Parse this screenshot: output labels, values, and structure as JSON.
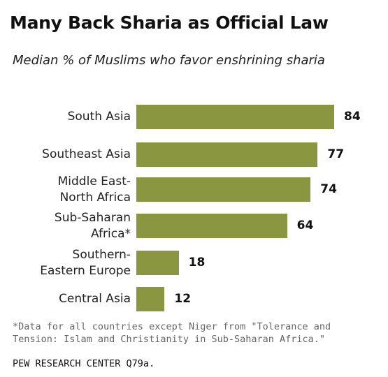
{
  "chart_data": {
    "type": "bar",
    "orientation": "horizontal",
    "title": "Many Back Sharia as Official Law",
    "subtitle": "Median % of Muslims who favor enshrining sharia",
    "categories": [
      [
        "South Asia"
      ],
      [
        "Southeast Asia"
      ],
      [
        "Middle East-",
        "North Africa"
      ],
      [
        "Sub-Saharan",
        "Africa*"
      ],
      [
        "Southern-",
        "Eastern Europe"
      ],
      [
        "Central Asia"
      ]
    ],
    "values": [
      84,
      77,
      74,
      64,
      18,
      12
    ],
    "xlim": [
      0,
      100
    ],
    "grid": false,
    "bar_color": "#8b9641"
  },
  "footnote": "*Data for all countries except Niger from \"Tolerance and Tension: Islam and Christianity in Sub-Saharan Africa.\"",
  "source": "PEW RESEARCH CENTER Q79a."
}
